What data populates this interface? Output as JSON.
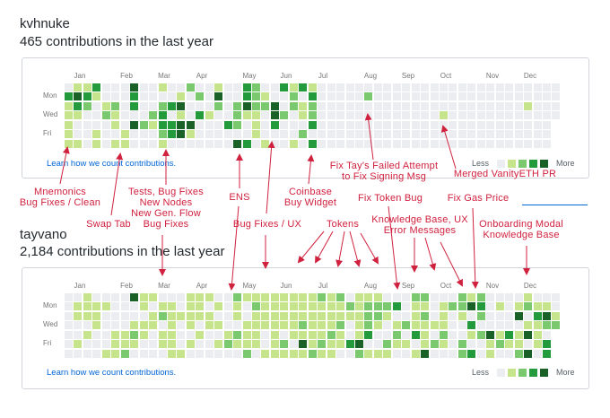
{
  "colors": {
    "levels": [
      "#ebedf0",
      "#c6e48b",
      "#7bc96f",
      "#239a3b",
      "#196127"
    ],
    "annotation": "#d0213f",
    "link": "#0366d6"
  },
  "months": [
    "Jan",
    "Feb",
    "Mar",
    "Apr",
    "May",
    "Jun",
    "Jul",
    "Aug",
    "Sep",
    "Oct",
    "Nov",
    "Dec"
  ],
  "days": [
    "Mon",
    "Wed",
    "Fri"
  ],
  "learn_label": "Learn how we count contributions.",
  "legend": {
    "less": "Less",
    "more": "More"
  },
  "graphs": [
    {
      "user": "kvhnuke",
      "count": "465 contributions in the last year",
      "weeks": [
        "0311111",
        "1431001",
        "1320000",
        "3100011",
        "0012000",
        "0021101",
        "0000011",
        "4330400",
        "0000200",
        "0002100",
        "1023321",
        "0030330",
        "0141440",
        "2000410",
        "0203000",
        "0001000",
        "1420000",
        "0000300",
        "0022204",
        "3341003",
        "2221110",
        "0120001",
        "0044300",
        "3002000",
        "1220001",
        "3011020",
        "1322303",
        "0000000",
        "0000000",
        "0000000",
        "0000000",
        "0000000",
        "0200000",
        "0000000",
        "0000000",
        "0000000",
        "0000000",
        "0000000",
        "0000000",
        "0000000",
        "0001000",
        "0000000",
        "0000000",
        "0000000",
        "0000000",
        "0000000",
        "0000000",
        "0000000",
        "0000000",
        "0010000",
        "0000000",
        "0000000",
        "0000"
      ]
    },
    {
      "user": "tayvano",
      "count": "2,184 contributions in the last year",
      "weeks": [
        "0000000",
        "0110010",
        "1110100",
        "0111000",
        "0100001",
        "0000111",
        "0000112",
        "4001210",
        "1101100",
        "1011000",
        "0120110",
        "0111111",
        "0010001",
        "1111010",
        "1110100",
        "1011000",
        "0101010",
        "0000120",
        "2110210",
        "1001112",
        "1211110",
        "1111001",
        "1111111",
        "1111021",
        "1111101",
        "1112141",
        "1111112",
        "2111121",
        "1111211",
        "2112110",
        "0210030",
        "1111142",
        "1222301",
        "1221001",
        "0210021",
        "0301210",
        "0002010",
        "2111301",
        "2121114",
        "0001020",
        "0111210",
        "0200000",
        "2210022",
        "1403103",
        "2320200",
        "0000411",
        "0100120",
        "0000310",
        "0140112",
        "1201404",
        "0131110",
        "0142033",
        "0012"
      ]
    }
  ],
  "annotations": {
    "mnemonics": [
      "Mnemonics",
      "Bug Fixes / Clean"
    ],
    "swap_tab": "Swap Tab",
    "tests": [
      "Tests, Bug Fixes",
      "New Nodes",
      "New Gen. Flow",
      "Bug Fixes"
    ],
    "ens": "ENS",
    "coinbase": [
      "Coinbase",
      "Buy Widget"
    ],
    "bugfix_ux": "Bug Fixes / UX",
    "fix_tay": [
      "Fix Tay's Failed Attempt",
      "to Fix Signing Msg"
    ],
    "vanity": "Merged VanityETH PR",
    "fix_token": "Fix Token Bug",
    "fix_gas": "Fix Gas Price",
    "tokens": "Tokens",
    "kb_ux": [
      "Knowledge Base, UX",
      "Error Messages"
    ],
    "onboarding": [
      "Onboarding Modal",
      "Knowledge Base"
    ]
  }
}
